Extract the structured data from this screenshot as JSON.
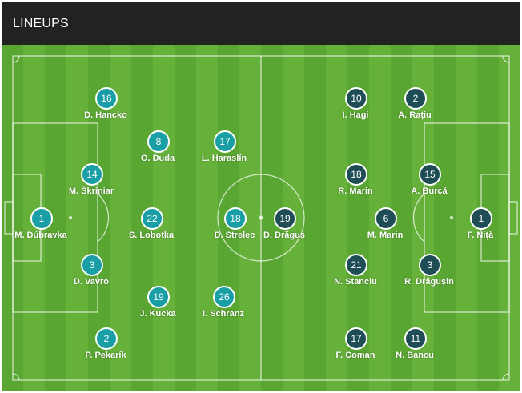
{
  "header": {
    "title": "LINEUPS"
  },
  "home": [
    {
      "number": "16",
      "name": "D. Hancko"
    },
    {
      "number": "8",
      "name": "O. Duda"
    },
    {
      "number": "17",
      "name": "L. Haraslín"
    },
    {
      "number": "14",
      "name": "M. Škriniar"
    },
    {
      "number": "1",
      "name": "M. Dúbravka"
    },
    {
      "number": "22",
      "name": "S. Lobotka"
    },
    {
      "number": "18",
      "name": "D. Strelec"
    },
    {
      "number": "3",
      "name": "D. Vavro"
    },
    {
      "number": "19",
      "name": "J. Kucka"
    },
    {
      "number": "26",
      "name": "I. Schranz"
    },
    {
      "number": "2",
      "name": "P. Pekarík"
    }
  ],
  "away": [
    {
      "number": "10",
      "name": "I. Hagi"
    },
    {
      "number": "2",
      "name": "A. Rațiu"
    },
    {
      "number": "18",
      "name": "R. Marin"
    },
    {
      "number": "15",
      "name": "A. Burcă"
    },
    {
      "number": "19",
      "name": "D. Drăguș"
    },
    {
      "number": "6",
      "name": "M. Marin"
    },
    {
      "number": "1",
      "name": "F. Niță"
    },
    {
      "number": "21",
      "name": "N. Stanciu"
    },
    {
      "number": "3",
      "name": "R. Drăgușin"
    },
    {
      "number": "17",
      "name": "F. Coman"
    },
    {
      "number": "11",
      "name": "N. Bancu"
    }
  ],
  "colors": {
    "home_badge": "#1a9ea5",
    "away_badge": "#1e4d56",
    "pitch_light": "#66b13a",
    "pitch_dark": "#5aa632",
    "header_bg": "#222222"
  }
}
